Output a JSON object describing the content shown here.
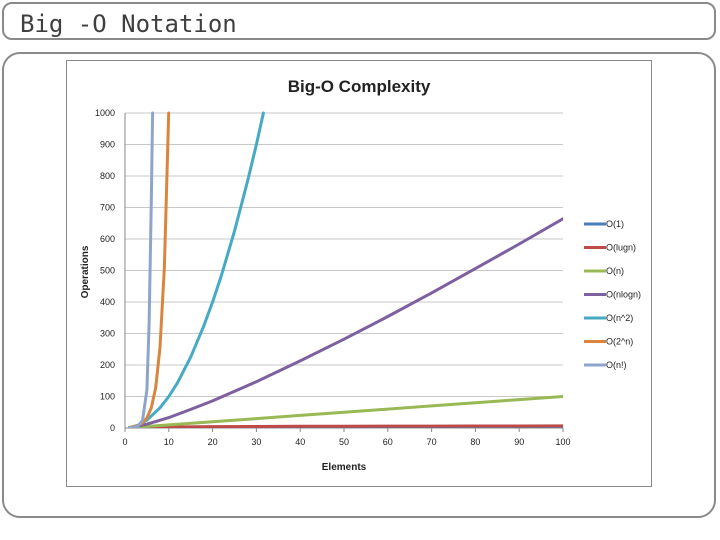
{
  "slide": {
    "title": "Big -O Notation"
  },
  "chart_data": {
    "type": "line",
    "title": "Big-O Complexity",
    "xlabel": "Elements",
    "ylabel": "Operations",
    "xlim": [
      0,
      100
    ],
    "ylim": [
      0,
      1000
    ],
    "x_ticks": [
      "0",
      "10",
      "20",
      "30",
      "40",
      "50",
      "60",
      "70",
      "80",
      "90",
      "100"
    ],
    "y_ticks": [
      "0",
      "100",
      "200",
      "300",
      "400",
      "500",
      "600",
      "700",
      "800",
      "900",
      "1000"
    ],
    "grid": "horizontal",
    "legend_position": "right",
    "series": [
      {
        "name": "O(1)",
        "color": "#4a7ebb",
        "points": [
          [
            1,
            1
          ],
          [
            10,
            1
          ],
          [
            20,
            1
          ],
          [
            30,
            1
          ],
          [
            40,
            1
          ],
          [
            50,
            1
          ],
          [
            60,
            1
          ],
          [
            70,
            1
          ],
          [
            80,
            1
          ],
          [
            90,
            1
          ],
          [
            100,
            1
          ]
        ]
      },
      {
        "name": "O(lugn)",
        "color": "#be4b48",
        "points": [
          [
            1,
            0
          ],
          [
            10,
            3.3
          ],
          [
            20,
            4.3
          ],
          [
            30,
            4.9
          ],
          [
            40,
            5.3
          ],
          [
            50,
            5.6
          ],
          [
            60,
            5.9
          ],
          [
            70,
            6.1
          ],
          [
            80,
            6.3
          ],
          [
            90,
            6.5
          ],
          [
            100,
            6.6
          ]
        ]
      },
      {
        "name": "O(n)",
        "color": "#98b954",
        "points": [
          [
            1,
            1
          ],
          [
            10,
            10
          ],
          [
            20,
            20
          ],
          [
            30,
            30
          ],
          [
            40,
            40
          ],
          [
            50,
            50
          ],
          [
            60,
            60
          ],
          [
            70,
            70
          ],
          [
            80,
            80
          ],
          [
            90,
            90
          ],
          [
            100,
            100
          ]
        ]
      },
      {
        "name": "O(nlogn)",
        "color": "#7d60a0",
        "points": [
          [
            1,
            0
          ],
          [
            5,
            12
          ],
          [
            10,
            33
          ],
          [
            15,
            59
          ],
          [
            20,
            86
          ],
          [
            30,
            147
          ],
          [
            40,
            213
          ],
          [
            50,
            282
          ],
          [
            60,
            354
          ],
          [
            70,
            429
          ],
          [
            80,
            506
          ],
          [
            90,
            584
          ],
          [
            100,
            664
          ]
        ]
      },
      {
        "name": "O(n^2)",
        "color": "#46aac5",
        "points": [
          [
            1,
            1
          ],
          [
            3,
            9
          ],
          [
            5,
            25
          ],
          [
            8,
            64
          ],
          [
            10,
            100
          ],
          [
            12,
            144
          ],
          [
            15,
            225
          ],
          [
            18,
            324
          ],
          [
            20,
            400
          ],
          [
            22,
            484
          ],
          [
            25,
            625
          ],
          [
            28,
            784
          ],
          [
            30,
            900
          ],
          [
            31.6,
            1000
          ]
        ]
      },
      {
        "name": "O(2^n)",
        "color": "#db843d",
        "points": [
          [
            1,
            2
          ],
          [
            2,
            4
          ],
          [
            3,
            8
          ],
          [
            4,
            16
          ],
          [
            5,
            32
          ],
          [
            6,
            64
          ],
          [
            7,
            128
          ],
          [
            8,
            256
          ],
          [
            9,
            512
          ],
          [
            9.97,
            1000
          ]
        ]
      },
      {
        "name": "O(n!)",
        "color": "#8ea5cb",
        "points": [
          [
            1,
            1
          ],
          [
            2,
            2
          ],
          [
            3,
            6
          ],
          [
            4,
            24
          ],
          [
            5,
            120
          ],
          [
            5.5,
            330
          ],
          [
            6,
            720
          ],
          [
            6.3,
            1000
          ]
        ]
      }
    ]
  }
}
